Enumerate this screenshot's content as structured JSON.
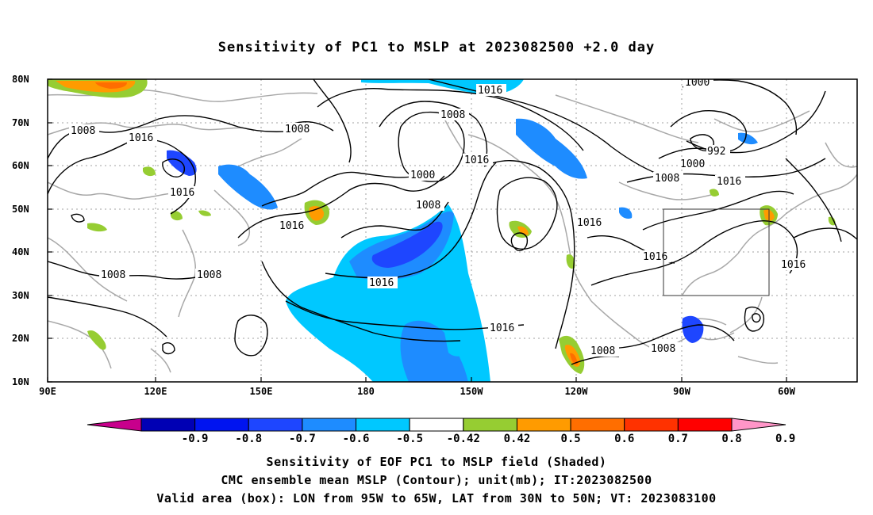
{
  "title": "Sensitivity of PC1 to MSLP at 2023082500 +2.0 day",
  "map": {
    "lat_labels": [
      "80N",
      "70N",
      "60N",
      "50N",
      "40N",
      "30N",
      "20N",
      "10N"
    ],
    "lon_labels": [
      "90E",
      "120E",
      "150E",
      "180",
      "150W",
      "120W",
      "90W",
      "60W"
    ],
    "valid_box": {
      "lon_from": "95W",
      "lon_to": "65W",
      "lat_from": "30N",
      "lat_to": "50N"
    },
    "contour_labels": [
      "1008",
      "1016",
      "1016",
      "1008",
      "1016",
      "1008",
      "1000",
      "1008",
      "1016",
      "1016",
      "1008",
      "1016",
      "1008",
      "1016",
      "1016",
      "1000",
      "992",
      "1000",
      "1008",
      "1016",
      "1016",
      "1016",
      "1008",
      "1008",
      "1016",
      "1008"
    ]
  },
  "colorbar": {
    "labels": [
      "-0.9",
      "-0.8",
      "-0.7",
      "-0.6",
      "-0.5",
      "-0.42",
      "0.42",
      "0.5",
      "0.6",
      "0.7",
      "0.8",
      "0.9"
    ],
    "colors": [
      "#c8008c",
      "#0000b4",
      "#0014f0",
      "#1e46ff",
      "#1e8cff",
      "#00c8ff",
      "#ffffff",
      "#96cd32",
      "#ff9b00",
      "#ff6e00",
      "#ff3200",
      "#ff0000",
      "#ff96c8"
    ]
  },
  "captions": {
    "line1": "Sensitivity of EOF PC1 to MSLP field (Shaded)",
    "line2": "CMC ensemble mean MSLP (Contour); unit(mb); IT:2023082500",
    "line3": "Valid area (box): LON from 95W to 65W, LAT from 30N to 50N; VT: 2023083100"
  }
}
